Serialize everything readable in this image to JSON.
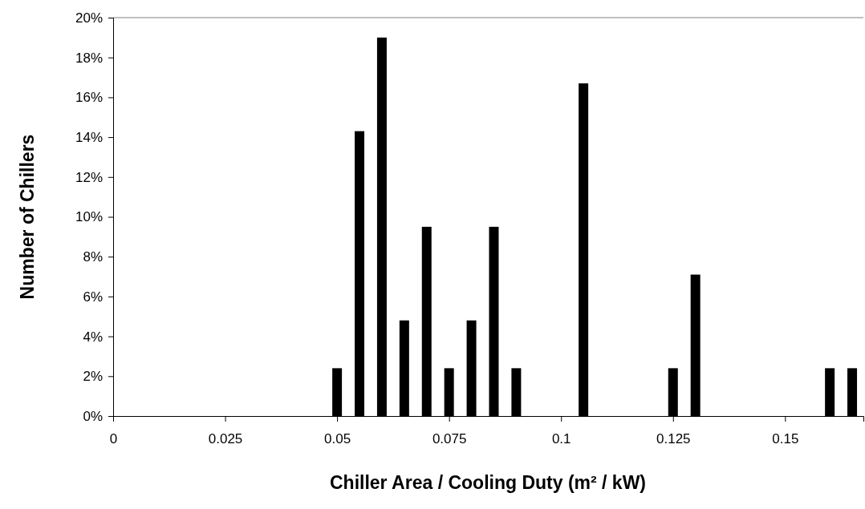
{
  "chart_data": {
    "type": "bar",
    "xlabel": "Chiller Area / Cooling Duty (m² / kW)",
    "ylabel": "Number of Chillers",
    "x": [
      0.05,
      0.055,
      0.06,
      0.065,
      0.07,
      0.075,
      0.08,
      0.085,
      0.09,
      0.105,
      0.125,
      0.13,
      0.16,
      0.165
    ],
    "values": [
      2.4,
      14.3,
      19.0,
      4.8,
      9.5,
      2.4,
      4.8,
      9.5,
      2.4,
      16.7,
      2.4,
      7.1,
      2.4,
      2.4
    ],
    "color": "#000000",
    "xlim": [
      0,
      0.1675
    ],
    "xticks": [
      0,
      0.025,
      0.05,
      0.075,
      0.1,
      0.125,
      0.15
    ],
    "ylim": [
      0,
      20
    ],
    "yticks": [
      {
        "value": 0,
        "label": "0%"
      },
      {
        "value": 2,
        "label": "2%"
      },
      {
        "value": 4,
        "label": "4%"
      },
      {
        "value": 6,
        "label": "6%"
      },
      {
        "value": 8,
        "label": "8%"
      },
      {
        "value": 10,
        "label": "10%"
      },
      {
        "value": 12,
        "label": "12%"
      },
      {
        "value": 14,
        "label": "14%"
      },
      {
        "value": 16,
        "label": "16%"
      },
      {
        "value": 18,
        "label": "18%"
      },
      {
        "value": 20,
        "label": "20%"
      }
    ],
    "grid": false
  }
}
